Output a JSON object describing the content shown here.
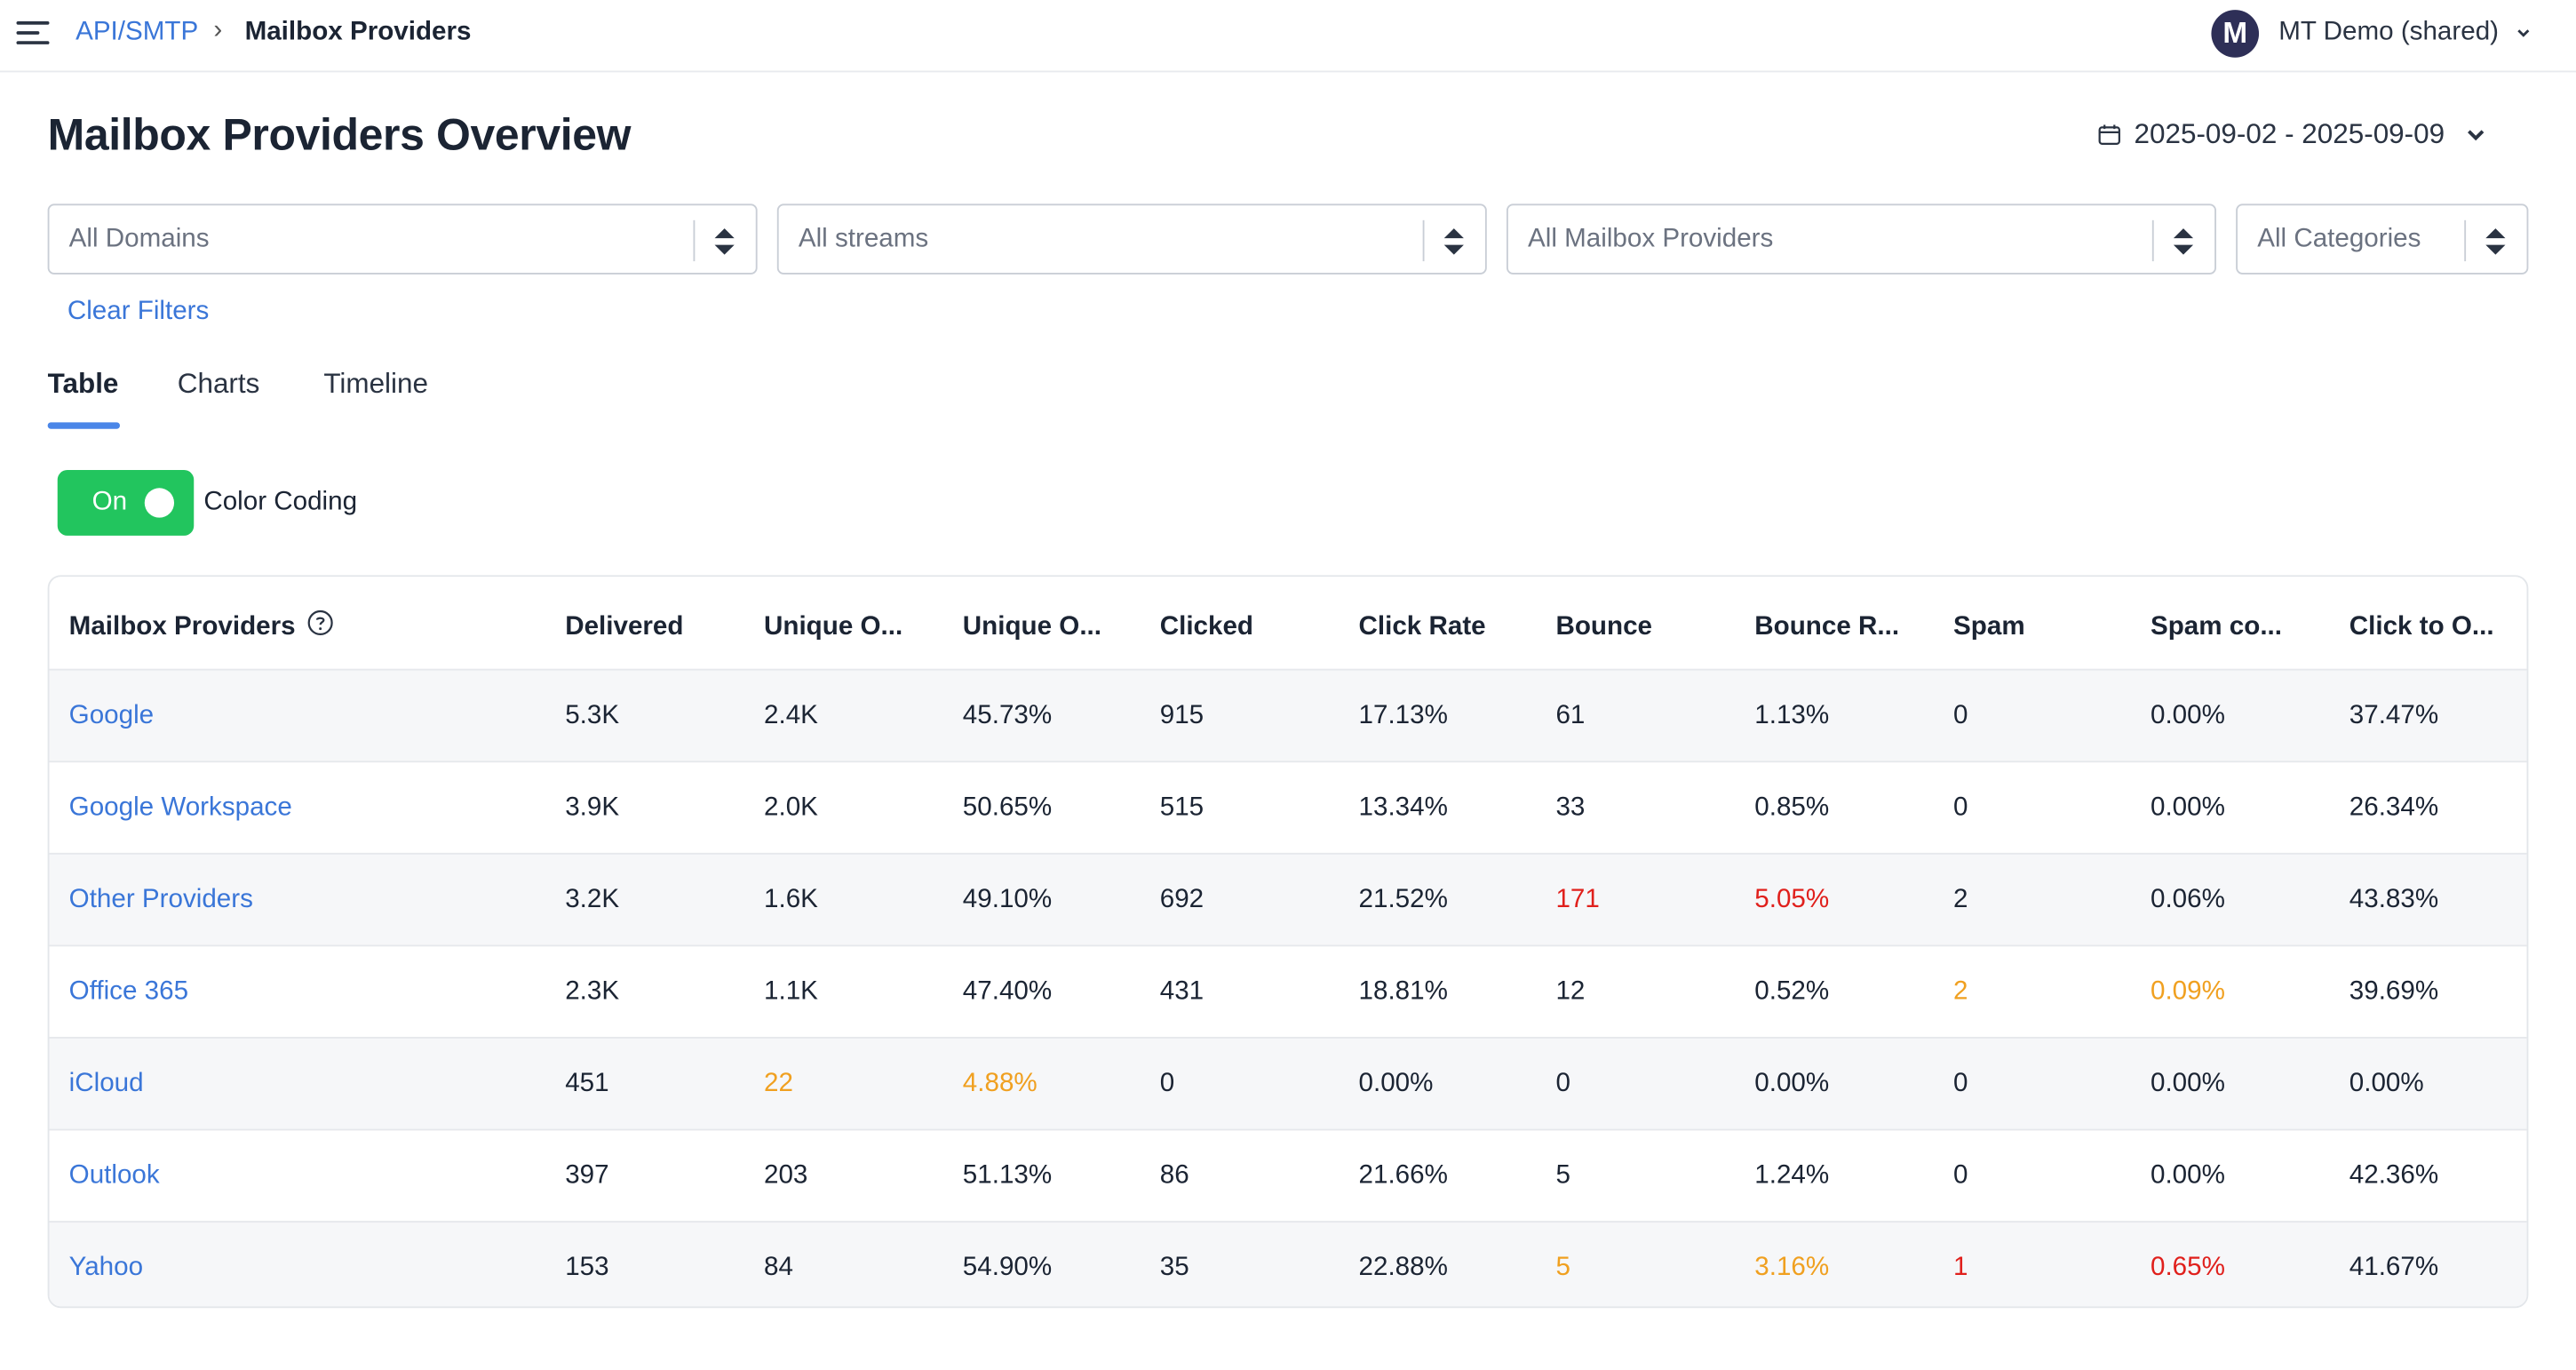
{
  "breadcrumb": {
    "parent": "API/SMTP",
    "separator": "›",
    "current": "Mailbox Providers"
  },
  "account": {
    "initial": "M",
    "name": "MT Demo (shared)"
  },
  "page": {
    "title": "Mailbox Providers Overview"
  },
  "date_range": "2025-09-02 - 2025-09-09",
  "filters": {
    "domain": "All Domains",
    "stream": "All streams",
    "provider": "All Mailbox Providers",
    "category": "All Categories",
    "clear_label": "Clear Filters"
  },
  "tabs": [
    {
      "label": "Table",
      "active": true
    },
    {
      "label": "Charts",
      "active": false
    },
    {
      "label": "Timeline",
      "active": false
    }
  ],
  "color_coding": {
    "state_label": "On",
    "label": "Color Coding"
  },
  "colors": {
    "link": "#3a76d8",
    "warning": "#f0a020",
    "danger": "#e0201c",
    "toggle_on": "#22c55e"
  },
  "table": {
    "columns": [
      "Mailbox Providers",
      "Delivered",
      "Unique O...",
      "Unique O...",
      "Clicked",
      "Click Rate",
      "Bounce",
      "Bounce R...",
      "Spam",
      "Spam co...",
      "Click to O..."
    ],
    "rows": [
      [
        "Google",
        "5.3K",
        "2.4K",
        "45.73%",
        "915",
        "17.13%",
        "61",
        "1.13%",
        "0",
        "0.00%",
        "37.47%"
      ],
      [
        "Google Workspace",
        "3.9K",
        "2.0K",
        "50.65%",
        "515",
        "13.34%",
        "33",
        "0.85%",
        "0",
        "0.00%",
        "26.34%"
      ],
      [
        "Other Providers",
        "3.2K",
        "1.6K",
        "49.10%",
        "692",
        "21.52%",
        "171",
        "5.05%",
        "2",
        "0.06%",
        "43.83%"
      ],
      [
        "Office 365",
        "2.3K",
        "1.1K",
        "47.40%",
        "431",
        "18.81%",
        "12",
        "0.52%",
        "2",
        "0.09%",
        "39.69%"
      ],
      [
        "iCloud",
        "451",
        "22",
        "4.88%",
        "0",
        "0.00%",
        "0",
        "0.00%",
        "0",
        "0.00%",
        "0.00%"
      ],
      [
        "Outlook",
        "397",
        "203",
        "51.13%",
        "86",
        "21.66%",
        "5",
        "1.24%",
        "0",
        "0.00%",
        "42.36%"
      ],
      [
        "Yahoo",
        "153",
        "84",
        "54.90%",
        "35",
        "22.88%",
        "5",
        "3.16%",
        "1",
        "0.65%",
        "41.67%"
      ]
    ],
    "highlights": [
      {
        "row": 2,
        "cols": [
          6,
          7
        ],
        "level": "danger"
      },
      {
        "row": 3,
        "cols": [
          8,
          9
        ],
        "level": "warning"
      },
      {
        "row": 4,
        "cols": [
          2,
          3
        ],
        "level": "warning"
      },
      {
        "row": 6,
        "cols": [
          6,
          7
        ],
        "level": "warning"
      },
      {
        "row": 6,
        "cols": [
          8,
          9
        ],
        "level": "danger"
      }
    ]
  }
}
